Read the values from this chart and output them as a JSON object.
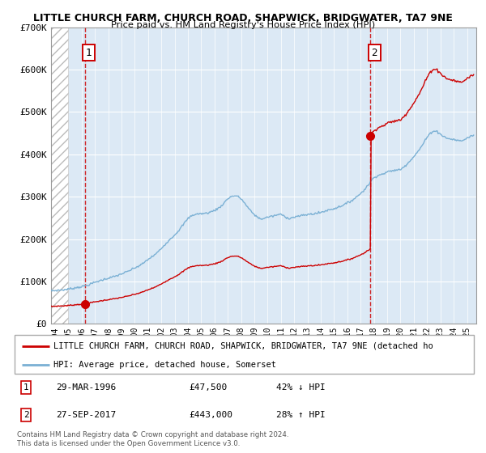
{
  "title1": "LITTLE CHURCH FARM, CHURCH ROAD, SHAPWICK, BRIDGWATER, TA7 9NE",
  "title2": "Price paid vs. HM Land Registry's House Price Index (HPI)",
  "legend_label1": "LITTLE CHURCH FARM, CHURCH ROAD, SHAPWICK, BRIDGWATER, TA7 9NE (detached ho",
  "legend_label2": "HPI: Average price, detached house, Somerset",
  "purchase1_date": "29-MAR-1996",
  "purchase1_price": 47500,
  "purchase1_label": "42% ↓ HPI",
  "purchase2_date": "27-SEP-2017",
  "purchase2_price": 443000,
  "purchase2_label": "28% ↑ HPI",
  "footer": "Contains HM Land Registry data © Crown copyright and database right 2024.\nThis data is licensed under the Open Government Licence v3.0.",
  "ylim": [
    0,
    700000
  ],
  "yticks": [
    0,
    100000,
    200000,
    300000,
    400000,
    500000,
    600000,
    700000
  ],
  "yticklabels": [
    "£0",
    "£100K",
    "£200K",
    "£300K",
    "£400K",
    "£500K",
    "£600K",
    "£700K"
  ],
  "bg_color": "#dce9f5",
  "hatch_color": "#bbbbbb",
  "grid_color": "#ffffff",
  "line_color_red": "#cc0000",
  "line_color_blue": "#7ab0d4",
  "purchase1_x": 1996.24,
  "purchase2_x": 2017.74,
  "xmin": 1993.7,
  "xmax": 2025.7
}
